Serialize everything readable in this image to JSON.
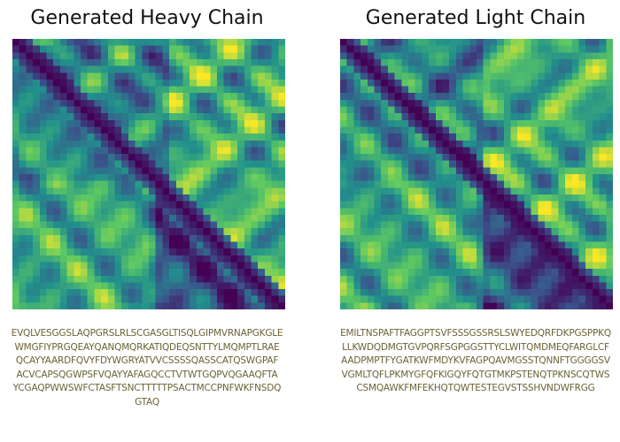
{
  "panels": [
    {
      "title": "Generated Heavy Chain",
      "sequence_lines": [
        "EVQLVESGGSLAQPGRSLRLSCGASGLTISQLGIPMVRNAPGKGLE",
        "WMGFIYPRGQEAYQANQMQRKATIQDEQSNTTYLMQMPTLRAE",
        "QCAYYAARDFQVYFDYWGRYATVVCSSSSQASSCATQSWGPAF",
        "ACVCAPSQGWPSFVQAYYAFAGQCCTVTWTGQPVQGAAQFTA",
        "YCGAQPWWSWFCTASFTSNCTTTTTPSACTMCCPNFWKFNSDQ",
        "GTAQ"
      ]
    },
    {
      "title": "Generated Light Chain",
      "sequence_lines": [
        "EMILTNSPAFTFAGGPTSVFSSSGSSRSLSWYEDQRFDKPGSPPKQ",
        "LLKWDQDMGTGVPQRFSGPGGSTTYCLWITQMDMEQFARGLCF",
        "AADPMPTFYGATKWFMDYKVFAGPQAVMGSSTQNNFTGGGGSV",
        "VGMLTQFLPKMYGFQFKIGQYFQTGTMKPSTENQTPKNSCQTWS",
        "CSMQAWKFMFEKHQTQWTESTEGVSTSSHVNDWFRGG"
      ]
    }
  ]
}
